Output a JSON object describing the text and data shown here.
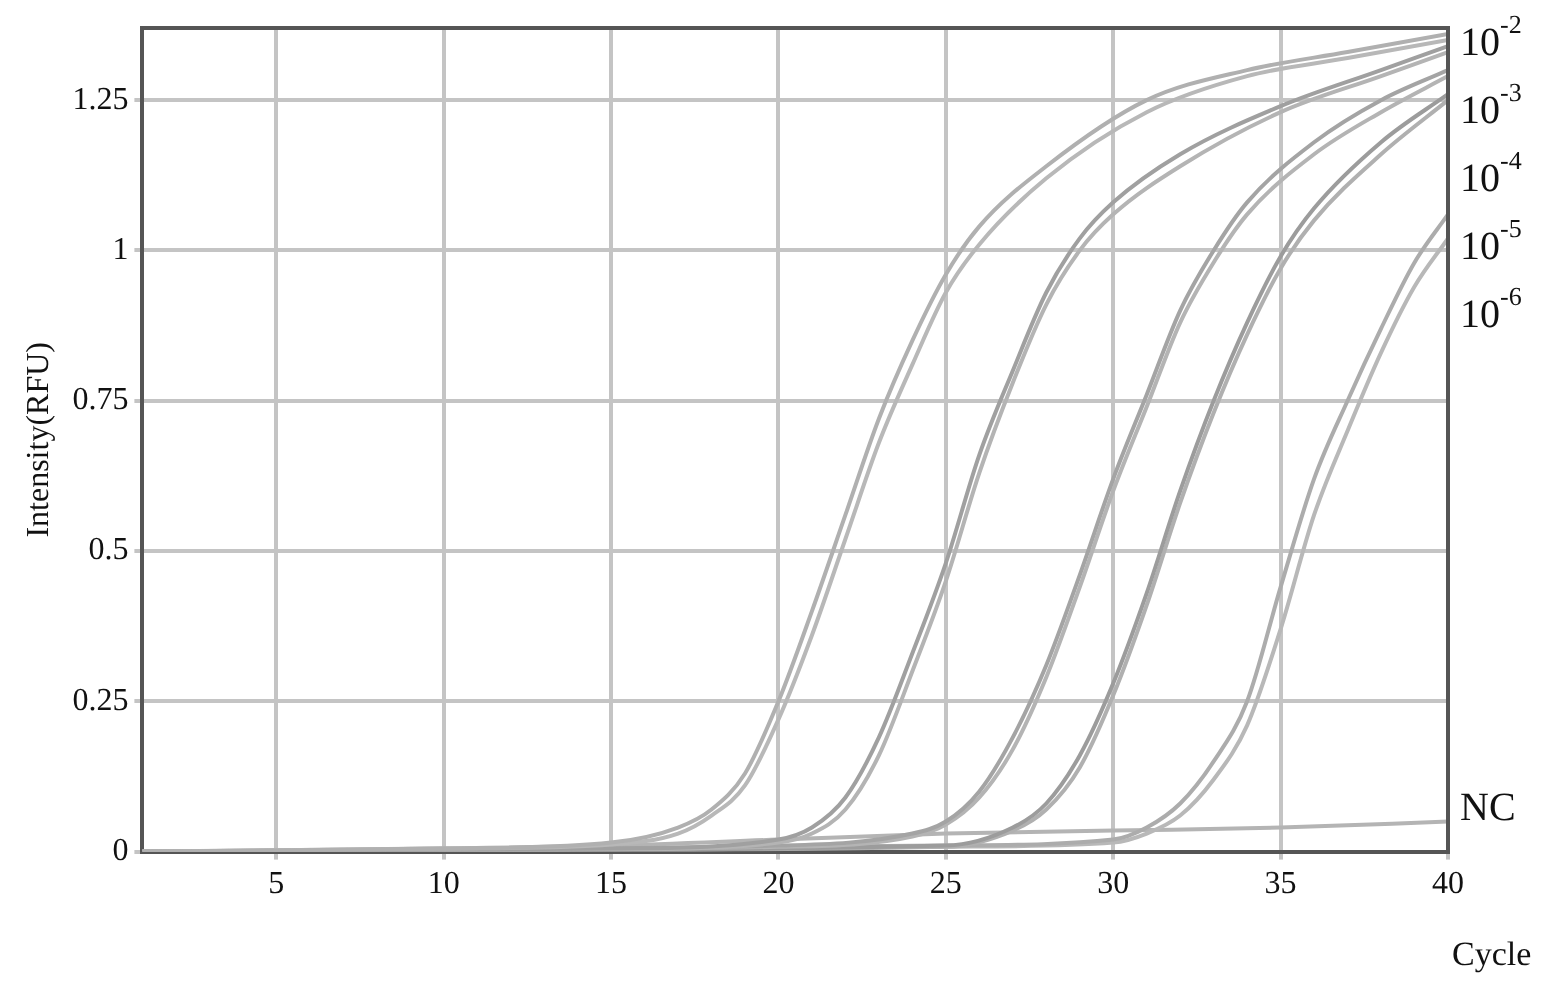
{
  "chart_data": {
    "type": "line",
    "xlabel": "Cycle",
    "ylabel": "Intensity(RFU)",
    "xlim": [
      1,
      40
    ],
    "ylim": [
      0,
      1.37
    ],
    "xticks": [
      5,
      10,
      15,
      20,
      25,
      30,
      35,
      40
    ],
    "yticks": [
      0,
      0.25,
      0.5,
      0.75,
      1,
      1.25
    ],
    "grid": true,
    "legend": false,
    "marker": "none",
    "line_style": "solid",
    "series": [
      {
        "name": "10$^{-2}$",
        "color": "#b0b0b0",
        "x": [
          1,
          10,
          15,
          17,
          18,
          19,
          20,
          21,
          22,
          23,
          24,
          25,
          26,
          28,
          31,
          34,
          37,
          40
        ],
        "values": [
          0,
          0.005,
          0.015,
          0.04,
          0.07,
          0.13,
          0.25,
          0.4,
          0.56,
          0.72,
          0.85,
          0.96,
          1.04,
          1.14,
          1.25,
          1.3,
          1.33,
          1.36
        ]
      },
      {
        "color": "#b8b8b8",
        "x": [
          1,
          10,
          15,
          17,
          18,
          19,
          20,
          21,
          22,
          23,
          24,
          25,
          26,
          28,
          31,
          34,
          37,
          40
        ],
        "values": [
          0,
          0.005,
          0.012,
          0.03,
          0.06,
          0.11,
          0.22,
          0.36,
          0.52,
          0.68,
          0.81,
          0.93,
          1.01,
          1.12,
          1.23,
          1.29,
          1.32,
          1.35
        ]
      },
      {
        "name": "10$^{-3}$",
        "color": "#a0a0a0",
        "x": [
          1,
          15,
          20,
          21,
          22,
          23,
          24,
          25,
          26,
          27,
          28,
          29,
          30,
          32,
          35,
          38,
          40
        ],
        "values": [
          0,
          0.005,
          0.02,
          0.04,
          0.09,
          0.19,
          0.33,
          0.48,
          0.66,
          0.8,
          0.93,
          1.02,
          1.08,
          1.16,
          1.24,
          1.3,
          1.34
        ]
      },
      {
        "color": "#b4b4b4",
        "x": [
          1,
          15,
          20,
          21,
          22,
          23,
          24,
          25,
          26,
          27,
          28,
          29,
          30,
          32,
          35,
          38,
          40
        ],
        "values": [
          0,
          0.004,
          0.015,
          0.03,
          0.07,
          0.16,
          0.3,
          0.45,
          0.63,
          0.78,
          0.91,
          1,
          1.06,
          1.14,
          1.23,
          1.29,
          1.33
        ]
      },
      {
        "name": "10$^{-4}$",
        "color": "#a4a4a4",
        "x": [
          1,
          20,
          24,
          25,
          26,
          27,
          28,
          29,
          30,
          31,
          32,
          33,
          34,
          36,
          38,
          40
        ],
        "values": [
          0,
          0.01,
          0.03,
          0.05,
          0.1,
          0.19,
          0.31,
          0.46,
          0.62,
          0.76,
          0.9,
          1,
          1.08,
          1.18,
          1.25,
          1.3
        ]
      },
      {
        "color": "#b4b4b4",
        "x": [
          1,
          20,
          24,
          25,
          26,
          27,
          28,
          29,
          30,
          31,
          32,
          33,
          34,
          36,
          38,
          40
        ],
        "values": [
          0,
          0.008,
          0.025,
          0.045,
          0.09,
          0.17,
          0.29,
          0.44,
          0.6,
          0.74,
          0.88,
          0.98,
          1.06,
          1.16,
          1.23,
          1.29
        ]
      },
      {
        "name": "10$^{-5}$",
        "color": "#9c9c9c",
        "x": [
          1,
          25,
          27,
          28,
          29,
          30,
          31,
          32,
          33,
          34,
          35,
          36,
          38,
          40
        ],
        "values": [
          0,
          0.01,
          0.04,
          0.08,
          0.16,
          0.28,
          0.43,
          0.6,
          0.75,
          0.88,
          0.99,
          1.07,
          1.18,
          1.26
        ]
      },
      {
        "color": "#b0b0b0",
        "x": [
          1,
          25,
          27,
          28,
          29,
          30,
          31,
          32,
          33,
          34,
          35,
          36,
          38,
          40
        ],
        "values": [
          0,
          0.008,
          0.035,
          0.07,
          0.14,
          0.26,
          0.41,
          0.58,
          0.73,
          0.86,
          0.97,
          1.05,
          1.16,
          1.25
        ]
      },
      {
        "name": "10$^{-6}$",
        "color": "#acacac",
        "x": [
          1,
          25,
          30,
          31,
          32,
          33,
          34,
          35,
          36,
          37,
          38,
          39,
          40
        ],
        "values": [
          0,
          0.01,
          0.02,
          0.04,
          0.08,
          0.15,
          0.25,
          0.44,
          0.62,
          0.75,
          0.87,
          0.98,
          1.06
        ]
      },
      {
        "color": "#b8b8b8",
        "x": [
          1,
          25,
          30,
          31,
          32,
          33,
          34,
          35,
          36,
          37,
          38,
          39,
          40
        ],
        "values": [
          0,
          0.008,
          0.015,
          0.03,
          0.06,
          0.12,
          0.21,
          0.37,
          0.56,
          0.7,
          0.83,
          0.94,
          1.02
        ]
      },
      {
        "name": "NC",
        "color": "#b4b4b4",
        "x": [
          1,
          15,
          20,
          25,
          30,
          35,
          40
        ],
        "values": [
          0,
          0.01,
          0.02,
          0.03,
          0.035,
          0.04,
          0.05
        ]
      }
    ]
  }
}
